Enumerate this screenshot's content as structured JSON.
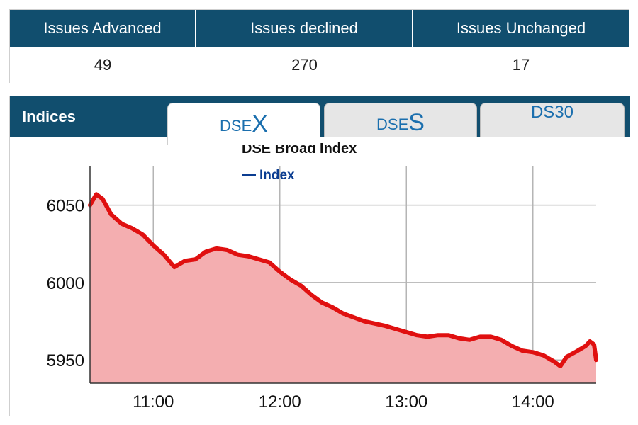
{
  "issues": {
    "headers": [
      "Issues Advanced",
      "Issues declined",
      "Issues Unchanged"
    ],
    "values": [
      "49",
      "270",
      "17"
    ]
  },
  "panel": {
    "title": "Indices",
    "tabs": [
      {
        "prefix": "DSE",
        "suffix": "X",
        "active": true
      },
      {
        "prefix": "DSE",
        "suffix": "S",
        "active": false
      },
      {
        "label": "DS30",
        "active": false
      }
    ]
  },
  "colors": {
    "header_bg": "#114e6e",
    "line": "#e01010",
    "fill": "#f4aeb0",
    "tab_text": "#1b6fae",
    "legend": "#0b3d91"
  },
  "chart_data": {
    "type": "area",
    "title": "DSE Broad Index",
    "legend": [
      "Index"
    ],
    "legend_placement": "top-left",
    "grid": true,
    "xlabel": "",
    "ylabel": "",
    "x_ticks": [
      "11:00",
      "12:00",
      "13:00",
      "14:00"
    ],
    "y_ticks": [
      5950,
      6000,
      6050
    ],
    "xlim": [
      "10:30",
      "14:30"
    ],
    "ylim": [
      5935,
      6075
    ],
    "series": [
      {
        "name": "Index",
        "x": [
          "10:30",
          "10:33",
          "10:36",
          "10:40",
          "10:45",
          "10:50",
          "10:55",
          "11:00",
          "11:05",
          "11:10",
          "11:15",
          "11:20",
          "11:25",
          "11:30",
          "11:35",
          "11:40",
          "11:45",
          "11:50",
          "11:55",
          "12:00",
          "12:05",
          "12:10",
          "12:15",
          "12:20",
          "12:25",
          "12:30",
          "12:40",
          "12:50",
          "13:00",
          "13:05",
          "13:10",
          "13:15",
          "13:20",
          "13:25",
          "13:30",
          "13:35",
          "13:40",
          "13:45",
          "13:50",
          "13:55",
          "14:00",
          "14:05",
          "14:10",
          "14:13",
          "14:16",
          "14:20",
          "14:25",
          "14:27",
          "14:29",
          "14:30"
        ],
        "y": [
          6050,
          6057,
          6054,
          6044,
          6038,
          6035,
          6031,
          6024,
          6018,
          6010,
          6014,
          6015,
          6020,
          6022,
          6021,
          6018,
          6017,
          6015,
          6013,
          6007,
          6002,
          5998,
          5992,
          5987,
          5984,
          5980,
          5975,
          5972,
          5968,
          5966,
          5965,
          5966,
          5966,
          5964,
          5963,
          5965,
          5965,
          5963,
          5959,
          5956,
          5955,
          5953,
          5949,
          5946,
          5952,
          5955,
          5959,
          5962,
          5960,
          5950
        ]
      }
    ]
  }
}
